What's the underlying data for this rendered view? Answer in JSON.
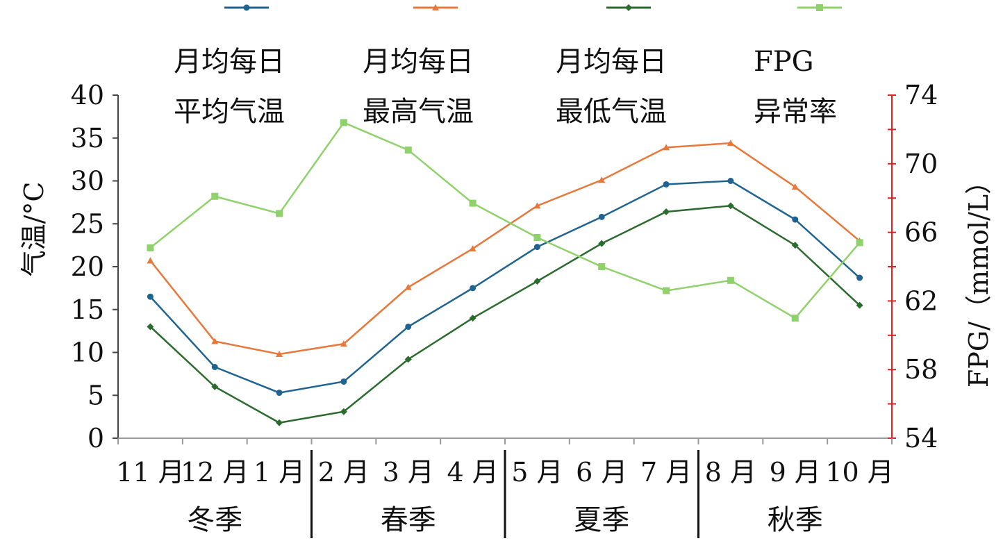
{
  "chart_data": {
    "type": "line",
    "categories": [
      "11 月",
      "12 月",
      "1 月",
      "2 月",
      "3 月",
      "4 月",
      "5 月",
      "6 月",
      "7 月",
      "8 月",
      "9 月",
      "10 月"
    ],
    "seasons": [
      {
        "label": "冬季",
        "months": 3
      },
      {
        "label": "春季",
        "months": 3
      },
      {
        "label": "夏季",
        "months": 3
      },
      {
        "label": "秋季",
        "months": 3
      }
    ],
    "ylabel": "气温/°C",
    "y2label": "FPG/（mmol/L）",
    "ylim": [
      0,
      40
    ],
    "y2lim": [
      54,
      74
    ],
    "yticks": [
      "0",
      "5",
      "10",
      "15",
      "20",
      "25",
      "30",
      "35",
      "40"
    ],
    "y2ticks": [
      "54",
      "58",
      "62",
      "66",
      "70",
      "74"
    ],
    "legend_position": "top",
    "series": [
      {
        "name": "月均每日平均气温",
        "legend_lines": [
          "月均每日",
          "平均气温"
        ],
        "axis": "left",
        "color": "#1f6390",
        "marker": "circle",
        "values": [
          16.5,
          8.3,
          5.3,
          6.6,
          13.0,
          17.5,
          22.3,
          25.8,
          29.6,
          30.0,
          25.5,
          18.7
        ]
      },
      {
        "name": "月均每日最高气温",
        "legend_lines": [
          "月均每日",
          "最高气温"
        ],
        "axis": "left",
        "color": "#e8773a",
        "marker": "triangle",
        "values": [
          20.7,
          11.3,
          9.8,
          11.0,
          17.6,
          22.1,
          27.1,
          30.1,
          33.9,
          34.4,
          29.3,
          23.0
        ]
      },
      {
        "name": "月均每日最低气温",
        "legend_lines": [
          "月均每日",
          "最低气温"
        ],
        "axis": "left",
        "color": "#2b6b2e",
        "marker": "diamond",
        "values": [
          13.0,
          6.0,
          1.8,
          3.1,
          9.2,
          14.0,
          18.3,
          22.7,
          26.4,
          27.1,
          22.5,
          15.5
        ]
      },
      {
        "name": "FPG 异常率",
        "legend_lines": [
          "FPG",
          "异常率"
        ],
        "axis": "right",
        "color": "#8fd16a",
        "marker": "square",
        "values": [
          65.1,
          68.1,
          67.1,
          72.4,
          70.8,
          67.7,
          65.7,
          64.0,
          62.6,
          63.2,
          61.0,
          65.4
        ]
      }
    ]
  }
}
